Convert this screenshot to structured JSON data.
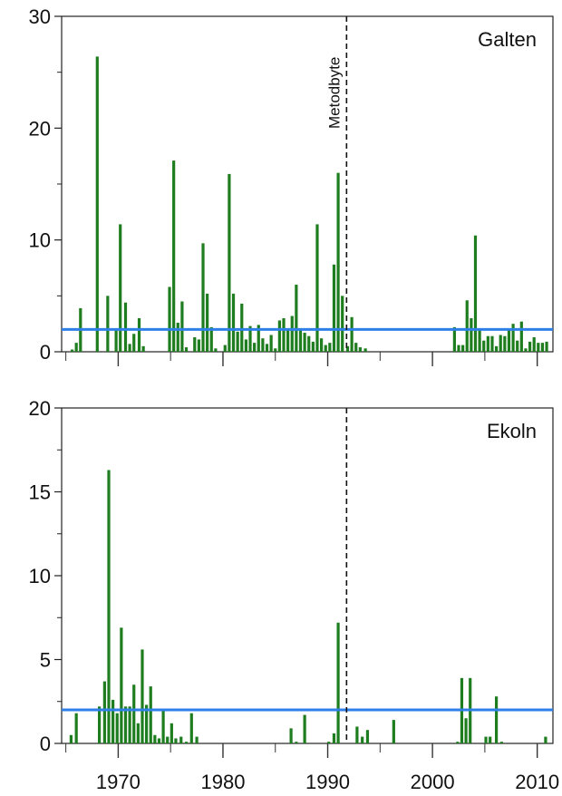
{
  "chart_data": [
    {
      "type": "bar",
      "panel_label": "Galten",
      "annotation": "Metodbyte",
      "annotation_x": 1991.8,
      "xlim": [
        1964.6,
        2011.5
      ],
      "ylim": [
        0,
        30
      ],
      "yticks": [
        0,
        10,
        20,
        30
      ],
      "threshold": 2,
      "colors": {
        "bars": "#1e7d1e",
        "threshold": "#2f7fe8"
      },
      "x": [
        1965.6,
        1966.0,
        1966.4,
        1968.0,
        1969.0,
        1969.8,
        1970.2,
        1970.7,
        1971.1,
        1971.5,
        1972.0,
        1972.4,
        1974.9,
        1975.3,
        1975.7,
        1976.1,
        1976.5,
        1977.3,
        1977.7,
        1978.1,
        1978.5,
        1978.9,
        1979.3,
        1980.2,
        1980.6,
        1981.0,
        1981.4,
        1981.8,
        1982.2,
        1982.6,
        1983.0,
        1983.4,
        1983.8,
        1984.2,
        1984.6,
        1985.0,
        1985.4,
        1985.8,
        1986.2,
        1986.6,
        1987.0,
        1987.4,
        1987.8,
        1988.2,
        1988.6,
        1989.0,
        1989.4,
        1989.8,
        1990.2,
        1990.6,
        1991.0,
        1991.4,
        1991.9,
        1992.3,
        1992.7,
        1993.1,
        1993.6,
        2002.1,
        2002.5,
        2002.9,
        2003.3,
        2003.7,
        2004.1,
        2004.5,
        2004.9,
        2005.3,
        2005.7,
        2006.1,
        2006.5,
        2006.9,
        2007.3,
        2007.7,
        2008.1,
        2008.5,
        2008.9,
        2009.3,
        2009.7,
        2010.1,
        2010.5,
        2010.9
      ],
      "values": [
        0.2,
        0.8,
        3.9,
        26.4,
        5.0,
        2.0,
        11.4,
        4.4,
        0.7,
        1.6,
        3.0,
        0.5,
        5.8,
        17.1,
        2.6,
        4.5,
        0.4,
        1.3,
        1.1,
        9.7,
        5.2,
        2.2,
        0.3,
        0.6,
        15.9,
        5.2,
        1.8,
        4.3,
        1.1,
        2.3,
        0.8,
        2.4,
        1.2,
        0.7,
        1.5,
        0.3,
        2.8,
        3.0,
        2.0,
        3.2,
        6.0,
        2.0,
        1.7,
        1.4,
        0.9,
        11.4,
        1.2,
        0.6,
        0.8,
        7.8,
        16.0,
        5.0,
        0.5,
        3.1,
        0.8,
        0.4,
        0.3,
        2.2,
        0.6,
        0.6,
        4.6,
        3.0,
        10.4,
        2.0,
        1.0,
        1.4,
        1.4,
        0.5,
        1.5,
        1.4,
        2.0,
        2.5,
        1.0,
        2.7,
        0.3,
        0.9,
        1.3,
        0.8,
        0.8,
        0.9
      ]
    },
    {
      "type": "bar",
      "panel_label": "Ekoln",
      "annotation_x": 1991.8,
      "xlim": [
        1964.6,
        2011.5
      ],
      "ylim": [
        0,
        20
      ],
      "yticks": [
        0,
        5,
        10,
        15,
        20
      ],
      "threshold": 2,
      "colors": {
        "bars": "#1e7d1e",
        "threshold": "#2f7fe8"
      },
      "x_ticks": [
        1970,
        1980,
        1990,
        2000,
        2010
      ],
      "x_tick_labels": [
        "1970",
        "1980",
        "1990",
        "2000",
        "2010"
      ],
      "x": [
        1965.5,
        1966.0,
        1968.2,
        1968.7,
        1969.1,
        1969.5,
        1969.9,
        1970.3,
        1970.7,
        1971.1,
        1971.5,
        1971.9,
        1972.3,
        1972.7,
        1973.1,
        1973.5,
        1973.9,
        1974.3,
        1974.7,
        1975.1,
        1975.5,
        1976.0,
        1976.5,
        1977.0,
        1977.5,
        1986.5,
        1987.0,
        1987.8,
        1990.1,
        1990.6,
        1991.0,
        1992.8,
        1993.3,
        1993.8,
        1996.3,
        2002.4,
        2002.8,
        2003.2,
        2003.6,
        2005.1,
        2005.5,
        2006.1,
        2006.6,
        2010.8
      ],
      "values": [
        0.5,
        1.8,
        2.2,
        3.7,
        16.3,
        2.6,
        1.8,
        6.9,
        2.2,
        2.2,
        3.5,
        1.2,
        5.6,
        2.3,
        3.4,
        0.5,
        0.3,
        2.0,
        0.4,
        1.2,
        0.3,
        0.4,
        0.1,
        1.8,
        0.4,
        0.9,
        0.1,
        1.7,
        0.1,
        0.6,
        7.2,
        1.0,
        0.4,
        0.8,
        1.4,
        0.1,
        3.9,
        1.5,
        3.9,
        0.4,
        0.4,
        2.8,
        0.1,
        0.4
      ]
    }
  ]
}
